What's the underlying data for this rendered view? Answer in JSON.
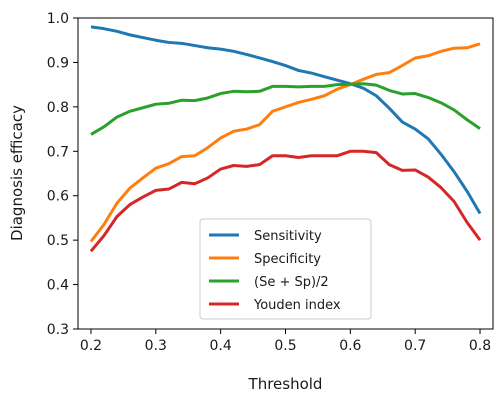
{
  "chart_data": {
    "type": "line",
    "title": "",
    "xlabel": "Threshold",
    "ylabel": "Diagnosis efficacy",
    "xlim": [
      0.18,
      0.82
    ],
    "ylim": [
      0.3,
      1.0
    ],
    "xticks": [
      "0.2",
      "0.3",
      "0.4",
      "0.5",
      "0.6",
      "0.7",
      "0.8"
    ],
    "yticks": [
      "0.3",
      "0.4",
      "0.5",
      "0.6",
      "0.7",
      "0.8",
      "0.9",
      "1.0"
    ],
    "grid": false,
    "legend_position": "lower-center",
    "x": [
      0.2,
      0.22,
      0.24,
      0.26,
      0.28,
      0.3,
      0.32,
      0.34,
      0.36,
      0.38,
      0.4,
      0.42,
      0.44,
      0.46,
      0.48,
      0.5,
      0.52,
      0.54,
      0.56,
      0.58,
      0.6,
      0.62,
      0.64,
      0.66,
      0.68,
      0.7,
      0.72,
      0.74,
      0.76,
      0.78,
      0.8
    ],
    "series": [
      {
        "name": "Sensitivity",
        "color": "#1f77b4",
        "values": [
          0.98,
          0.976,
          0.97,
          0.962,
          0.956,
          0.95,
          0.945,
          0.943,
          0.938,
          0.933,
          0.93,
          0.925,
          0.918,
          0.91,
          0.902,
          0.893,
          0.882,
          0.876,
          0.868,
          0.86,
          0.852,
          0.842,
          0.825,
          0.797,
          0.766,
          0.75,
          0.728,
          0.693,
          0.654,
          0.61,
          0.56
        ]
      },
      {
        "name": "Specificity",
        "color": "#ff7f0e",
        "values": [
          0.497,
          0.535,
          0.583,
          0.617,
          0.64,
          0.662,
          0.672,
          0.688,
          0.69,
          0.708,
          0.73,
          0.745,
          0.75,
          0.76,
          0.79,
          0.8,
          0.81,
          0.817,
          0.825,
          0.84,
          0.85,
          0.862,
          0.873,
          0.877,
          0.893,
          0.91,
          0.915,
          0.925,
          0.932,
          0.933,
          0.942
        ]
      },
      {
        "name": "(Se + Sp)/2",
        "color": "#2ca02c",
        "values": [
          0.738,
          0.755,
          0.777,
          0.79,
          0.798,
          0.806,
          0.808,
          0.815,
          0.814,
          0.82,
          0.83,
          0.835,
          0.834,
          0.835,
          0.846,
          0.846,
          0.845,
          0.846,
          0.846,
          0.85,
          0.851,
          0.852,
          0.849,
          0.837,
          0.829,
          0.83,
          0.821,
          0.809,
          0.793,
          0.771,
          0.751
        ]
      },
      {
        "name": "Youden index",
        "color": "#d62728",
        "values": [
          0.475,
          0.51,
          0.553,
          0.58,
          0.597,
          0.612,
          0.615,
          0.63,
          0.627,
          0.64,
          0.66,
          0.668,
          0.666,
          0.67,
          0.69,
          0.69,
          0.686,
          0.69,
          0.69,
          0.69,
          0.7,
          0.7,
          0.697,
          0.67,
          0.657,
          0.658,
          0.642,
          0.618,
          0.587,
          0.54,
          0.5
        ]
      }
    ]
  }
}
